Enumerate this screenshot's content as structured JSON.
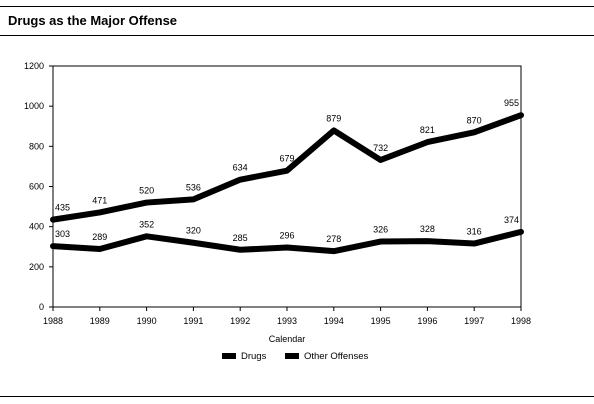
{
  "header": {
    "title": "Drugs as the Major Offense"
  },
  "chart_data": {
    "type": "line",
    "title": "Drugs as the Major Offense",
    "xlabel": "Calendar",
    "ylabel": "",
    "x": [
      "1988",
      "1989",
      "1990",
      "1991",
      "1992",
      "1993",
      "1994",
      "1995",
      "1996",
      "1997",
      "1998"
    ],
    "ylim": [
      0,
      1200
    ],
    "yticks": [
      0,
      200,
      400,
      600,
      800,
      1000,
      1200
    ],
    "grid": false,
    "legend_position": "bottom",
    "series": [
      {
        "name": "Drugs",
        "values": [
          435,
          471,
          520,
          536,
          634,
          679,
          879,
          732,
          821,
          870,
          955
        ],
        "color": "#000000"
      },
      {
        "name": "Other Offenses",
        "values": [
          303,
          289,
          352,
          320,
          285,
          296,
          278,
          326,
          328,
          316,
          374
        ],
        "color": "#000000"
      }
    ]
  }
}
